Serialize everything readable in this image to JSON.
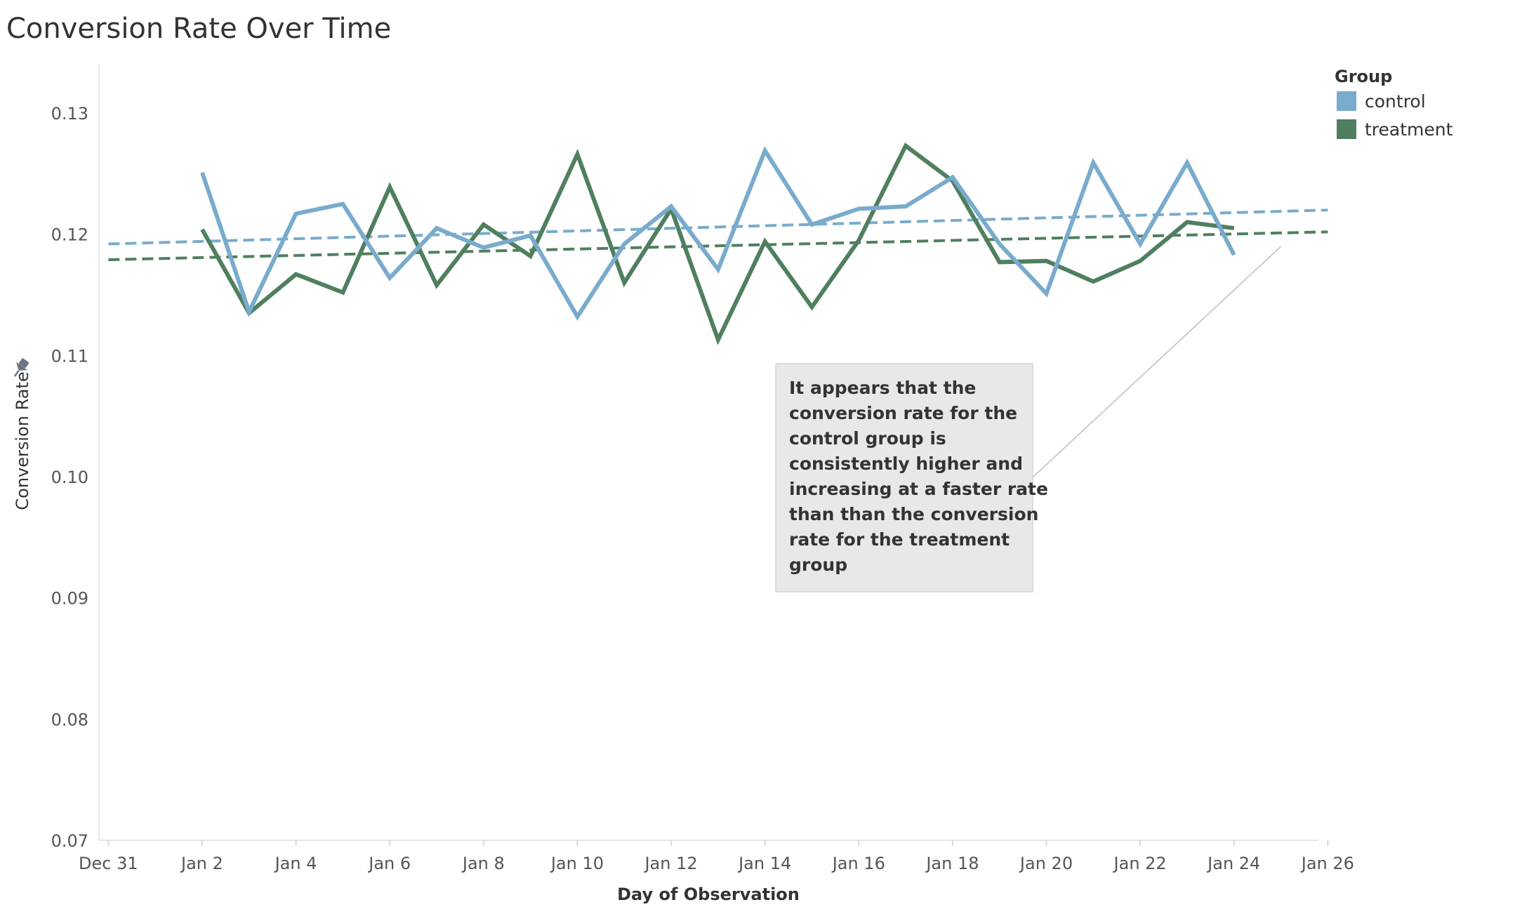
{
  "chart_data": {
    "type": "line",
    "title": "Conversion Rate Over Time",
    "xlabel": "Day of Observation",
    "ylabel": "Conversion Rate",
    "x_tick_labels": [
      "Dec 31",
      "Jan 2",
      "Jan 4",
      "Jan 6",
      "Jan 8",
      "Jan 10",
      "Jan 12",
      "Jan 14",
      "Jan 16",
      "Jan 18",
      "Jan 20",
      "Jan 22",
      "Jan 24",
      "Jan 26"
    ],
    "y_tick_labels": [
      "0.07",
      "0.08",
      "0.09",
      "0.10",
      "0.11",
      "0.12",
      "0.13"
    ],
    "ylim": [
      0.07,
      0.134
    ],
    "x_day_range": [
      -0.2,
      25.8
    ],
    "grid": false,
    "legend": {
      "title": "Group",
      "position": "top-right"
    },
    "x": [
      "Jan 2",
      "Jan 3",
      "Jan 4",
      "Jan 5",
      "Jan 6",
      "Jan 7",
      "Jan 8",
      "Jan 9",
      "Jan 10",
      "Jan 11",
      "Jan 12",
      "Jan 13",
      "Jan 14",
      "Jan 15",
      "Jan 16",
      "Jan 17",
      "Jan 18",
      "Jan 19",
      "Jan 20",
      "Jan 21",
      "Jan 22",
      "Jan 23",
      "Jan 24"
    ],
    "series": [
      {
        "name": "control",
        "color": "#79abcc",
        "values": [
          0.1251,
          0.1136,
          0.1217,
          0.1225,
          0.1164,
          0.1205,
          0.1189,
          0.1199,
          0.1132,
          0.1192,
          0.1223,
          0.1171,
          0.1269,
          0.1208,
          0.1221,
          0.1223,
          0.1247,
          0.1192,
          0.1151,
          0.1259,
          0.1192,
          0.1259,
          0.1183
        ],
        "trend": {
          "start": [
            "Dec 31",
            0.1192
          ],
          "end": [
            "Jan 26",
            0.122
          ]
        }
      },
      {
        "name": "treatment",
        "color": "#4f7f5f",
        "values": [
          0.1204,
          0.1135,
          0.1167,
          0.1152,
          0.1239,
          0.1158,
          0.1208,
          0.1182,
          0.1266,
          0.116,
          0.1221,
          0.1113,
          0.1194,
          0.114,
          0.1195,
          0.1273,
          0.1244,
          0.1177,
          0.1178,
          0.1161,
          0.1178,
          0.121,
          0.1205
        ],
        "trend": {
          "start": [
            "Dec 31",
            0.1179
          ],
          "end": [
            "Jan 26",
            0.1202
          ]
        }
      }
    ],
    "annotation": {
      "lines": [
        "It appears that the",
        "conversion rate for the",
        "control group is",
        "consistently higher and",
        "increasing at a faster rate",
        "than than the conversion",
        "rate for the treatment",
        "group"
      ],
      "points_to": [
        "Jan 25",
        0.119
      ]
    }
  }
}
